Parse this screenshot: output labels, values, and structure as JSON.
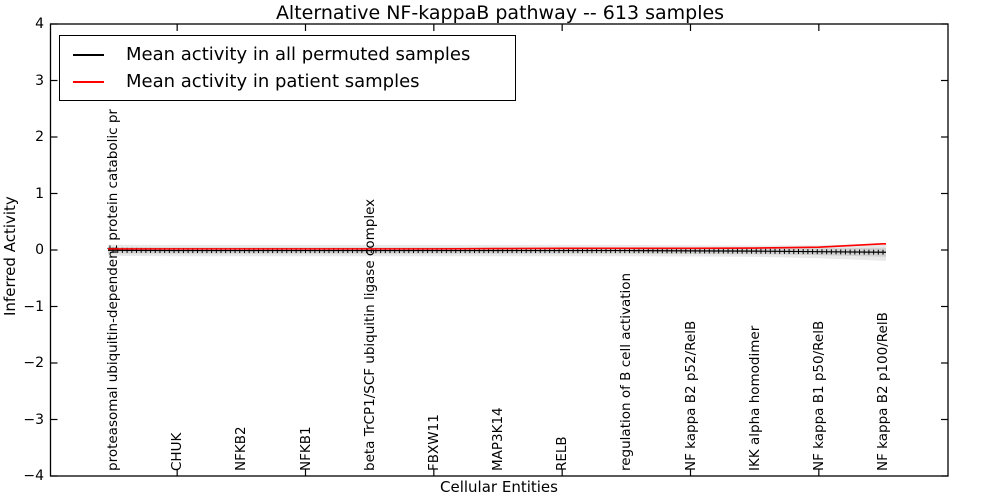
{
  "chart_data": {
    "type": "line",
    "title": "Alternative NF-kappaB pathway -- 613 samples",
    "xlabel": "Cellular Entities",
    "ylabel": "Inferred Activity",
    "ylim": [
      -4,
      4
    ],
    "yticks": [
      4,
      3,
      2,
      1,
      0,
      -1,
      -2,
      -3,
      -4
    ],
    "grid": false,
    "legend_position": "upper left",
    "categories": [
      "proteasomal ubiquitin-dependent protein catabolic pr",
      "CHUK",
      "NFKB2",
      "NFKB1",
      "beta TrCP1/SCF ubiquitin ligase complex",
      "FBXW11",
      "MAP3K14",
      "RELB",
      "regulation of B cell activation",
      "NF kappa B2 p52/RelB",
      "IKK alpha homodimer",
      "NF kappa B1 p50/RelB",
      "NF kappa B2 p100/RelB"
    ],
    "xtick_mark_indices": [
      1,
      3,
      5,
      7,
      9,
      11
    ],
    "series": [
      {
        "name": "Mean activity in all permuted samples",
        "color": "#000000",
        "values": [
          -0.005,
          -0.01,
          -0.01,
          -0.01,
          -0.01,
          -0.01,
          -0.01,
          -0.01,
          -0.01,
          -0.015,
          -0.02,
          -0.03,
          -0.04
        ]
      },
      {
        "name": "Mean activity in patient samples",
        "color": "#ff0000",
        "values": [
          0.02,
          0.02,
          0.02,
          0.02,
          0.02,
          0.02,
          0.025,
          0.03,
          0.03,
          0.03,
          0.035,
          0.05,
          0.11
        ]
      }
    ],
    "permuted_band": {
      "color": "#000000",
      "outer_alpha": 0.085,
      "inner_alpha": 0.1,
      "outer_half_width": [
        0.1,
        0.1,
        0.1,
        0.1,
        0.1,
        0.1,
        0.1,
        0.1,
        0.1,
        0.1,
        0.1,
        0.115,
        0.15
      ],
      "inner_half_width": [
        0.055,
        0.055,
        0.055,
        0.055,
        0.055,
        0.055,
        0.055,
        0.055,
        0.055,
        0.055,
        0.055,
        0.06,
        0.08
      ]
    },
    "error_tick_count": 165
  }
}
